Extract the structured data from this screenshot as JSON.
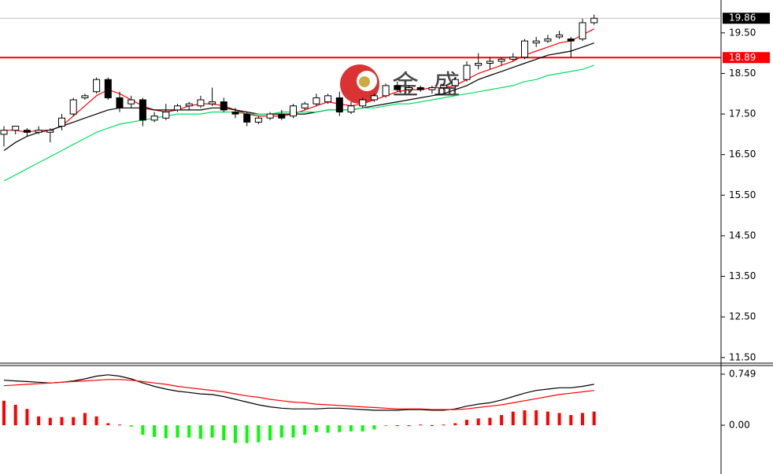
{
  "watermark": "金 盛",
  "chart_data": [
    {
      "type": "candlestick",
      "open": [
        17.0,
        17.1,
        17.1,
        17.05,
        17.05,
        17.2,
        17.5,
        17.9,
        18.05,
        18.35,
        17.9,
        17.75,
        17.85,
        17.35,
        17.4,
        17.6,
        17.7,
        17.7,
        17.75,
        17.8,
        17.55,
        17.5,
        17.3,
        17.4,
        17.5,
        17.45,
        17.65,
        17.75,
        17.8,
        17.9,
        17.55,
        17.7,
        17.85,
        17.95,
        18.2,
        18.1,
        18.15,
        18.1,
        18.15,
        18.2,
        18.35,
        18.7,
        18.75,
        18.8,
        18.85,
        18.9,
        19.25,
        19.3,
        19.4,
        19.35,
        19.35,
        19.75
      ],
      "high": [
        17.2,
        17.2,
        17.15,
        17.2,
        17.15,
        17.5,
        17.9,
        18.0,
        18.4,
        18.4,
        18.05,
        17.95,
        17.9,
        17.55,
        17.75,
        17.75,
        17.8,
        17.95,
        18.15,
        17.9,
        17.65,
        17.55,
        17.45,
        17.55,
        17.6,
        17.75,
        17.8,
        18.0,
        18.0,
        18.05,
        17.8,
        17.9,
        18.0,
        18.25,
        18.3,
        18.2,
        18.2,
        18.2,
        18.25,
        18.4,
        18.8,
        19.0,
        18.9,
        18.9,
        19.0,
        19.35,
        19.4,
        19.45,
        19.55,
        19.4,
        19.85,
        19.95
      ],
      "low": [
        16.7,
        17.0,
        16.95,
        17.0,
        16.8,
        17.1,
        17.45,
        17.85,
        18.0,
        17.85,
        17.55,
        17.65,
        17.2,
        17.3,
        17.35,
        17.55,
        17.6,
        17.65,
        17.7,
        17.55,
        17.4,
        17.2,
        17.25,
        17.35,
        17.35,
        17.4,
        17.6,
        17.7,
        17.75,
        17.45,
        17.5,
        17.65,
        17.8,
        17.9,
        18.05,
        18.0,
        18.05,
        18.0,
        18.1,
        18.15,
        18.3,
        18.6,
        18.6,
        18.7,
        18.8,
        18.85,
        19.15,
        19.25,
        19.35,
        18.9,
        19.3,
        19.7
      ],
      "close": [
        17.1,
        17.2,
        17.05,
        17.1,
        17.1,
        17.4,
        17.85,
        17.95,
        18.35,
        17.9,
        17.65,
        17.85,
        17.35,
        17.45,
        17.55,
        17.7,
        17.75,
        17.85,
        17.8,
        17.6,
        17.5,
        17.3,
        17.4,
        17.5,
        17.4,
        17.7,
        17.75,
        17.9,
        17.95,
        17.55,
        17.7,
        17.85,
        17.95,
        18.2,
        18.1,
        18.15,
        18.1,
        18.15,
        18.2,
        18.35,
        18.7,
        18.75,
        18.8,
        18.85,
        18.9,
        19.3,
        19.3,
        19.35,
        19.45,
        19.3,
        19.75,
        19.86
      ],
      "up_color": "#ffffff",
      "down_color": "#000000",
      "edge_color": "#000000",
      "moving_averages": [
        {
          "color": "#ff0000",
          "values": [
            17.1,
            17.1,
            17.05,
            17.1,
            17.1,
            17.2,
            17.45,
            17.7,
            17.95,
            18.1,
            18.0,
            17.85,
            17.7,
            17.6,
            17.55,
            17.6,
            17.7,
            17.75,
            17.75,
            17.7,
            17.6,
            17.5,
            17.45,
            17.45,
            17.45,
            17.5,
            17.6,
            17.7,
            17.8,
            17.75,
            17.7,
            17.75,
            17.85,
            17.95,
            18.05,
            18.1,
            18.1,
            18.15,
            18.15,
            18.2,
            18.35,
            18.5,
            18.6,
            18.7,
            18.8,
            18.95,
            19.05,
            19.15,
            19.25,
            19.3,
            19.45,
            19.6
          ]
        },
        {
          "color": "#000000",
          "values": [
            16.6,
            16.8,
            16.95,
            17.05,
            17.1,
            17.2,
            17.3,
            17.4,
            17.5,
            17.6,
            17.65,
            17.65,
            17.65,
            17.6,
            17.6,
            17.6,
            17.6,
            17.6,
            17.65,
            17.65,
            17.6,
            17.55,
            17.5,
            17.5,
            17.5,
            17.5,
            17.5,
            17.55,
            17.6,
            17.6,
            17.6,
            17.65,
            17.7,
            17.75,
            17.8,
            17.85,
            17.9,
            17.95,
            18.0,
            18.1,
            18.2,
            18.35,
            18.45,
            18.55,
            18.65,
            18.75,
            18.85,
            18.95,
            19.0,
            19.05,
            19.15,
            19.25
          ]
        },
        {
          "color": "#00e060",
          "values": [
            15.85,
            16.0,
            16.15,
            16.3,
            16.45,
            16.6,
            16.75,
            16.9,
            17.05,
            17.15,
            17.25,
            17.3,
            17.35,
            17.4,
            17.45,
            17.5,
            17.5,
            17.5,
            17.55,
            17.55,
            17.55,
            17.5,
            17.5,
            17.5,
            17.55,
            17.55,
            17.55,
            17.55,
            17.6,
            17.6,
            17.6,
            17.65,
            17.65,
            17.7,
            17.75,
            17.75,
            17.8,
            17.85,
            17.9,
            17.95,
            18.0,
            18.05,
            18.1,
            18.15,
            18.2,
            18.3,
            18.35,
            18.45,
            18.5,
            18.55,
            18.6,
            18.7
          ]
        }
      ],
      "price_markers": [
        {
          "value": 19.86,
          "line_color": "#c0c0c0",
          "box_color": "#000000"
        },
        {
          "value": 18.89,
          "line_color": "#ff0000",
          "box_color": "#ff0000"
        }
      ],
      "ylim": [
        11.36,
        20.31
      ],
      "yticks": [
        {
          "value": 11.5,
          "label": "11.50"
        },
        {
          "value": 12.5,
          "label": "12.50"
        },
        {
          "value": 13.5,
          "label": "13.50"
        },
        {
          "value": 14.5,
          "label": "14.50"
        },
        {
          "value": 15.5,
          "label": "15.50"
        },
        {
          "value": 16.5,
          "label": "16.50"
        },
        {
          "value": 17.5,
          "label": "17.50"
        },
        {
          "value": 18.5,
          "label": "18.50"
        },
        {
          "value": 19.5,
          "label": "19.50"
        }
      ]
    },
    {
      "type": "macd",
      "histogram": [
        0.36,
        0.3,
        0.24,
        0.13,
        0.11,
        0.12,
        0.12,
        0.18,
        0.13,
        0.03,
        0.01,
        -0.02,
        -0.14,
        -0.17,
        -0.19,
        -0.18,
        -0.18,
        -0.2,
        -0.18,
        -0.22,
        -0.26,
        -0.26,
        -0.25,
        -0.22,
        -0.18,
        -0.18,
        -0.14,
        -0.1,
        -0.11,
        -0.1,
        -0.09,
        -0.09,
        -0.06,
        -0.01,
        0,
        0,
        0.01,
        0,
        0.01,
        0.03,
        0.08,
        0.1,
        0.11,
        0.15,
        0.2,
        0.22,
        0.22,
        0.2,
        0.18,
        0.15,
        0.18,
        0.2
      ],
      "up_color": "#ff0000",
      "down_color": "#00ff00",
      "series": [
        {
          "color": "#000000",
          "values": [
            0.66,
            0.65,
            0.64,
            0.63,
            0.62,
            0.63,
            0.65,
            0.68,
            0.72,
            0.74,
            0.72,
            0.68,
            0.62,
            0.57,
            0.53,
            0.5,
            0.48,
            0.46,
            0.45,
            0.42,
            0.38,
            0.34,
            0.3,
            0.27,
            0.25,
            0.24,
            0.24,
            0.24,
            0.25,
            0.25,
            0.24,
            0.23,
            0.22,
            0.22,
            0.22,
            0.23,
            0.23,
            0.22,
            0.22,
            0.24,
            0.28,
            0.31,
            0.33,
            0.37,
            0.42,
            0.47,
            0.51,
            0.53,
            0.55,
            0.55,
            0.57,
            0.6
          ]
        },
        {
          "color": "#ff0000",
          "values": [
            0.58,
            0.59,
            0.6,
            0.61,
            0.62,
            0.63,
            0.64,
            0.65,
            0.66,
            0.67,
            0.67,
            0.66,
            0.64,
            0.62,
            0.6,
            0.57,
            0.55,
            0.53,
            0.51,
            0.49,
            0.46,
            0.43,
            0.41,
            0.38,
            0.36,
            0.34,
            0.33,
            0.31,
            0.3,
            0.29,
            0.28,
            0.27,
            0.26,
            0.25,
            0.24,
            0.24,
            0.24,
            0.23,
            0.23,
            0.23,
            0.24,
            0.26,
            0.28,
            0.3,
            0.33,
            0.36,
            0.39,
            0.42,
            0.45,
            0.47,
            0.49,
            0.51
          ]
        }
      ],
      "ylim": [
        -0.714,
        0.864
      ],
      "yticks": [
        0.749,
        {
          "value": 0,
          "label": "0.00"
        }
      ]
    }
  ]
}
